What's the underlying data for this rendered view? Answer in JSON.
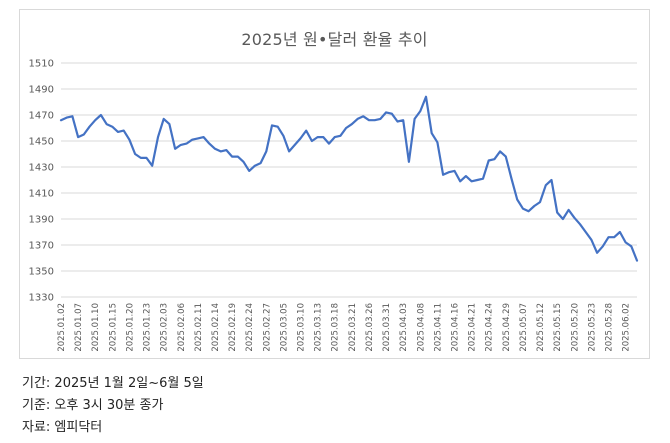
{
  "chart_data": {
    "type": "line",
    "title": "2025년 원•달러 환율 추이",
    "xlabel": "",
    "ylabel": "",
    "ylim": [
      1330,
      1510
    ],
    "yticks": [
      1330,
      1350,
      1370,
      1390,
      1410,
      1430,
      1450,
      1470,
      1490,
      1510
    ],
    "grid": true,
    "legend": "none",
    "line_color": "#4472C4",
    "x_tick_labels": [
      "2025.01.02",
      "2025.01.07",
      "2025.01.10",
      "2025.01.15",
      "2025.01.20",
      "2025.01.23",
      "2025.02.03",
      "2025.02.06",
      "2025.02.11",
      "2025.02.14",
      "2025.02.19",
      "2025.02.24",
      "2025.02.27",
      "2025.03.05",
      "2025.03.10",
      "2025.03.13",
      "2025.03.18",
      "2025.03.21",
      "2025.03.26",
      "2025.03.31",
      "2025.04.03",
      "2025.04.08",
      "2025.04.11",
      "2025.04.16",
      "2025.04.21",
      "2025.04.24",
      "2025.04.29",
      "2025.05.07",
      "2025.05.12",
      "2025.05.15",
      "2025.05.20",
      "2025.05.23",
      "2025.05.28",
      "2025.06.02"
    ],
    "series": [
      {
        "values": [
          1466,
          1468,
          1469,
          1453,
          1455,
          1461,
          1466,
          1470,
          1463,
          1461,
          1457,
          1458,
          1451,
          1440,
          1437,
          1437,
          1431,
          1453,
          1467,
          1463,
          1444,
          1447,
          1448,
          1451,
          1452,
          1453,
          1448,
          1444,
          1442,
          1443,
          1438,
          1438,
          1434,
          1427,
          1431,
          1433,
          1442,
          1462,
          1461,
          1454,
          1442,
          1447,
          1452,
          1458,
          1450,
          1453,
          1453,
          1448,
          1453,
          1454,
          1460,
          1463,
          1467,
          1469,
          1466,
          1466,
          1467,
          1472,
          1471,
          1465,
          1466,
          1434,
          1467,
          1473,
          1484,
          1456,
          1449,
          1424,
          1426,
          1427,
          1419,
          1423,
          1419,
          1420,
          1421,
          1435,
          1436,
          1442,
          1438,
          1421,
          1405,
          1398,
          1396,
          1400,
          1403,
          1416,
          1420,
          1395,
          1390,
          1397,
          1391,
          1386,
          1380,
          1374,
          1364,
          1369,
          1376,
          1376,
          1380,
          1372,
          1369,
          1358
        ]
      }
    ]
  },
  "notes": {
    "period": "기간: 2025년 1월 2일~6월 5일",
    "basis": "기준: 오후 3시 30분 종가",
    "source": "자료: 엠피닥터"
  }
}
